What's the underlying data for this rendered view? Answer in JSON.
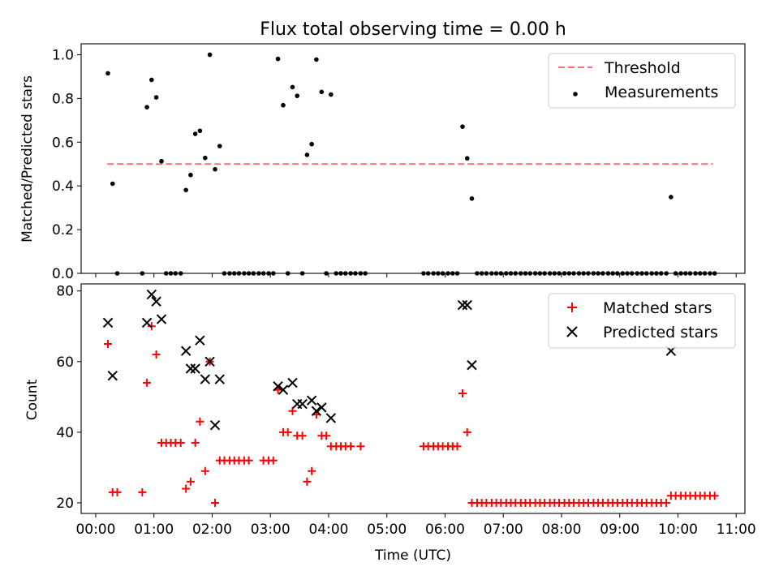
{
  "title": "Flux total observing time = 0.00 h",
  "xlabel": "Time (UTC)",
  "x_ticks": [
    "00:00",
    "01:00",
    "02:00",
    "03:00",
    "04:00",
    "05:00",
    "06:00",
    "07:00",
    "08:00",
    "09:00",
    "10:00",
    "11:00"
  ],
  "chart_data": [
    {
      "type": "scatter",
      "ylabel": "Matched/Predicted stars",
      "xlim": [
        -0.25,
        11.15
      ],
      "ylim": [
        0,
        1.05
      ],
      "y_ticks": [
        "0.0",
        "0.2",
        "0.4",
        "0.6",
        "0.8",
        "1.0"
      ],
      "legend": {
        "position": "top-right"
      },
      "series": [
        {
          "name": "Threshold",
          "kind": "dashed-line",
          "color": "#ff6f6f",
          "x": [
            0.2,
            10.6
          ],
          "y": [
            0.5,
            0.5
          ]
        },
        {
          "name": "Measurements",
          "kind": "points",
          "color": "#000000",
          "x": [
            0.21,
            0.29,
            0.37,
            0.8,
            0.88,
            0.96,
            1.04,
            1.13,
            1.21,
            1.29,
            1.37,
            1.46,
            1.55,
            1.63,
            1.71,
            1.79,
            1.88,
            1.96,
            2.05,
            2.13,
            2.21,
            2.3,
            2.38,
            2.46,
            2.55,
            2.63,
            2.71,
            2.8,
            2.88,
            2.97,
            3.05,
            3.13,
            3.22,
            3.3,
            3.38,
            3.46,
            3.55,
            3.63,
            3.71,
            3.79,
            3.88,
            3.96,
            4.04,
            4.13,
            4.21,
            4.29,
            4.38,
            4.46,
            4.55,
            4.63,
            5.63,
            5.71,
            5.8,
            5.88,
            5.96,
            6.05,
            6.13,
            6.21,
            6.3,
            6.38,
            6.46,
            6.55,
            6.63,
            6.71,
            6.8,
            6.88,
            6.96,
            7.05,
            7.13,
            7.21,
            7.3,
            7.38,
            7.46,
            7.55,
            7.63,
            7.71,
            7.8,
            7.88,
            7.96,
            8.05,
            8.13,
            8.21,
            8.3,
            8.38,
            8.46,
            8.55,
            8.63,
            8.71,
            8.8,
            8.88,
            8.96,
            9.05,
            9.13,
            9.21,
            9.3,
            9.38,
            9.46,
            9.55,
            9.63,
            9.71,
            9.8,
            9.88,
            9.96,
            10.05,
            10.13,
            10.21,
            10.3,
            10.38,
            10.46,
            10.55,
            10.63
          ],
          "y": [
            0.915,
            0.41,
            0.0,
            0.0,
            0.76,
            0.885,
            0.805,
            0.513,
            0.0,
            0.0,
            0.0,
            0.0,
            0.381,
            0.45,
            0.638,
            0.652,
            0.528,
            1.0,
            0.476,
            0.582,
            0.0,
            0.0,
            0.0,
            0.0,
            0.0,
            0.0,
            0.0,
            0.0,
            0.0,
            0.0,
            0.0,
            0.981,
            0.769,
            0.0,
            0.852,
            0.812,
            0.0,
            0.542,
            0.591,
            0.978,
            0.83,
            0.0,
            0.818,
            0.0,
            0.0,
            0.0,
            0.0,
            0.0,
            0.0,
            0.0,
            0.0,
            0.0,
            0.0,
            0.0,
            0.0,
            0.0,
            0.0,
            0.0,
            0.671,
            0.526,
            0.342,
            0.0,
            0.0,
            0.0,
            0.0,
            0.0,
            0.0,
            0.0,
            0.0,
            0.0,
            0.0,
            0.0,
            0.0,
            0.0,
            0.0,
            0.0,
            0.0,
            0.0,
            0.0,
            0.0,
            0.0,
            0.0,
            0.0,
            0.0,
            0.0,
            0.0,
            0.0,
            0.0,
            0.0,
            0.0,
            0.0,
            0.0,
            0.0,
            0.0,
            0.0,
            0.0,
            0.0,
            0.0,
            0.0,
            0.0,
            0.0,
            0.349,
            0.0,
            0.0,
            0.0,
            0.0,
            0.0,
            0.0,
            0.0,
            0.0,
            0.0
          ]
        }
      ]
    },
    {
      "type": "scatter",
      "ylabel": "Count",
      "xlim": [
        -0.25,
        11.15
      ],
      "ylim": [
        17,
        82
      ],
      "y_ticks": [
        "20",
        "40",
        "60",
        "80"
      ],
      "legend": {
        "position": "top-right"
      },
      "series": [
        {
          "name": "Matched stars",
          "kind": "plus",
          "color": "#ff0000",
          "x": [
            0.21,
            0.29,
            0.37,
            0.8,
            0.88,
            0.96,
            1.04,
            1.13,
            1.21,
            1.29,
            1.37,
            1.46,
            1.55,
            1.63,
            1.71,
            1.79,
            1.88,
            1.96,
            2.05,
            2.13,
            2.21,
            2.3,
            2.38,
            2.46,
            2.55,
            2.63,
            2.88,
            2.97,
            3.05,
            3.13,
            3.22,
            3.3,
            3.38,
            3.46,
            3.55,
            3.63,
            3.71,
            3.79,
            3.88,
            3.96,
            4.04,
            4.13,
            4.21,
            4.29,
            4.38,
            4.55,
            5.63,
            5.71,
            5.8,
            5.88,
            5.96,
            6.05,
            6.13,
            6.21,
            6.3,
            6.38,
            6.46,
            6.55,
            6.63,
            6.71,
            6.8,
            6.88,
            6.96,
            7.05,
            7.13,
            7.21,
            7.3,
            7.38,
            7.46,
            7.55,
            7.63,
            7.71,
            7.8,
            7.88,
            7.96,
            8.05,
            8.13,
            8.21,
            8.3,
            8.38,
            8.46,
            8.55,
            8.63,
            8.71,
            8.8,
            8.88,
            8.96,
            9.05,
            9.13,
            9.21,
            9.3,
            9.38,
            9.46,
            9.55,
            9.63,
            9.71,
            9.8,
            9.88,
            9.96,
            10.05,
            10.13,
            10.21,
            10.3,
            10.38,
            10.46,
            10.55,
            10.63
          ],
          "y": [
            65,
            23,
            23,
            23,
            54,
            70,
            62,
            37,
            37,
            37,
            37,
            37,
            24,
            26,
            37,
            43,
            29,
            60,
            20,
            32,
            32,
            32,
            32,
            32,
            32,
            32,
            32,
            32,
            32,
            52,
            40,
            40,
            46,
            39,
            39,
            26,
            29,
            45,
            39,
            39,
            36,
            36,
            36,
            36,
            36,
            36,
            36,
            36,
            36,
            36,
            36,
            36,
            36,
            36,
            51,
            40,
            20,
            20,
            20,
            20,
            20,
            20,
            20,
            20,
            20,
            20,
            20,
            20,
            20,
            20,
            20,
            20,
            20,
            20,
            20,
            20,
            20,
            20,
            20,
            20,
            20,
            20,
            20,
            20,
            20,
            20,
            20,
            20,
            20,
            20,
            20,
            20,
            20,
            20,
            20,
            20,
            20,
            22,
            22,
            22,
            22,
            22,
            22,
            22,
            22,
            22,
            22
          ]
        },
        {
          "name": "Predicted stars",
          "kind": "cross",
          "color": "#000000",
          "x": [
            0.21,
            0.29,
            0.88,
            0.96,
            1.04,
            1.13,
            1.55,
            1.63,
            1.71,
            1.79,
            1.88,
            1.96,
            2.05,
            2.13,
            3.13,
            3.22,
            3.38,
            3.46,
            3.55,
            3.71,
            3.79,
            3.88,
            4.04,
            6.3,
            6.38,
            6.46,
            9.88
          ],
          "y": [
            71,
            56,
            71,
            79,
            77,
            72,
            63,
            58,
            58,
            66,
            55,
            60,
            42,
            55,
            53,
            52,
            54,
            48,
            48,
            49,
            46,
            47,
            44,
            76,
            76,
            59,
            63
          ]
        }
      ]
    }
  ]
}
